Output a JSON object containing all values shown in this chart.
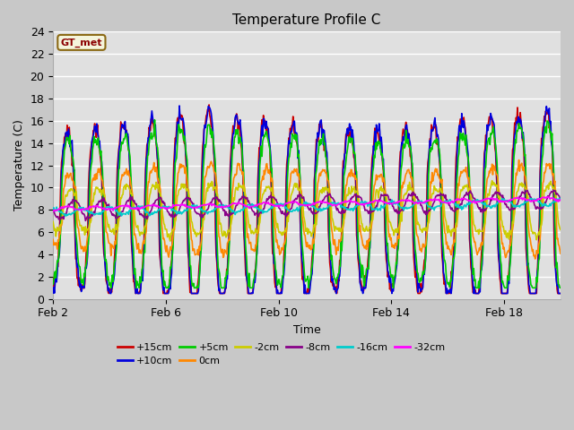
{
  "title": "Temperature Profile C",
  "xlabel": "Time",
  "ylabel": "Temperature (C)",
  "ylim": [
    0,
    24
  ],
  "xlim_days": [
    2,
    20
  ],
  "fig_facecolor": "#c8c8c8",
  "ax_facecolor": "#e0e0e0",
  "grid_color": "white",
  "legend_label": "GT_met",
  "legend_bg": "#f5f5dc",
  "legend_border": "#8b6914",
  "series": [
    {
      "label": "+15cm",
      "color": "#cc0000",
      "lw": 1.2
    },
    {
      "label": "+10cm",
      "color": "#0000dd",
      "lw": 1.2
    },
    {
      "label": "+5cm",
      "color": "#00cc00",
      "lw": 1.2
    },
    {
      "label": "0cm",
      "color": "#ff8800",
      "lw": 1.2
    },
    {
      "label": "-2cm",
      "color": "#cccc00",
      "lw": 1.2
    },
    {
      "label": "-8cm",
      "color": "#880088",
      "lw": 1.2
    },
    {
      "label": "-16cm",
      "color": "#00cccc",
      "lw": 1.2
    },
    {
      "label": "-32cm",
      "color": "#ff00ff",
      "lw": 1.2
    }
  ],
  "xtick_labels": [
    "Feb 2",
    "Feb 6",
    "Feb 10",
    "Feb 14",
    "Feb 18"
  ],
  "xtick_positions": [
    2,
    6,
    10,
    14,
    18
  ],
  "ytick_positions": [
    0,
    2,
    4,
    6,
    8,
    10,
    12,
    14,
    16,
    18,
    20,
    22,
    24
  ]
}
